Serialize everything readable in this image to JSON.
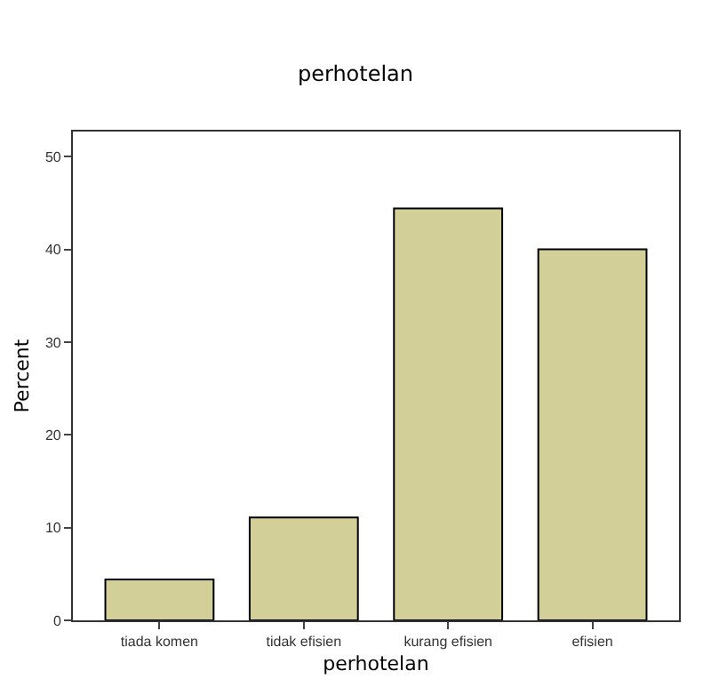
{
  "chart_data": {
    "type": "bar",
    "title": "perhotelan",
    "xlabel": "perhotelan",
    "ylabel": "Percent",
    "categories": [
      "tiada komen",
      "tidak efisien",
      "kurang efisien",
      "efisien"
    ],
    "values": [
      4.4,
      11.1,
      44.4,
      40.0
    ],
    "color": "#d3cf99",
    "ylim": [
      0,
      52.7
    ],
    "yticks": [
      0,
      10,
      20,
      30,
      40,
      50
    ],
    "grid": false,
    "legend": false
  }
}
